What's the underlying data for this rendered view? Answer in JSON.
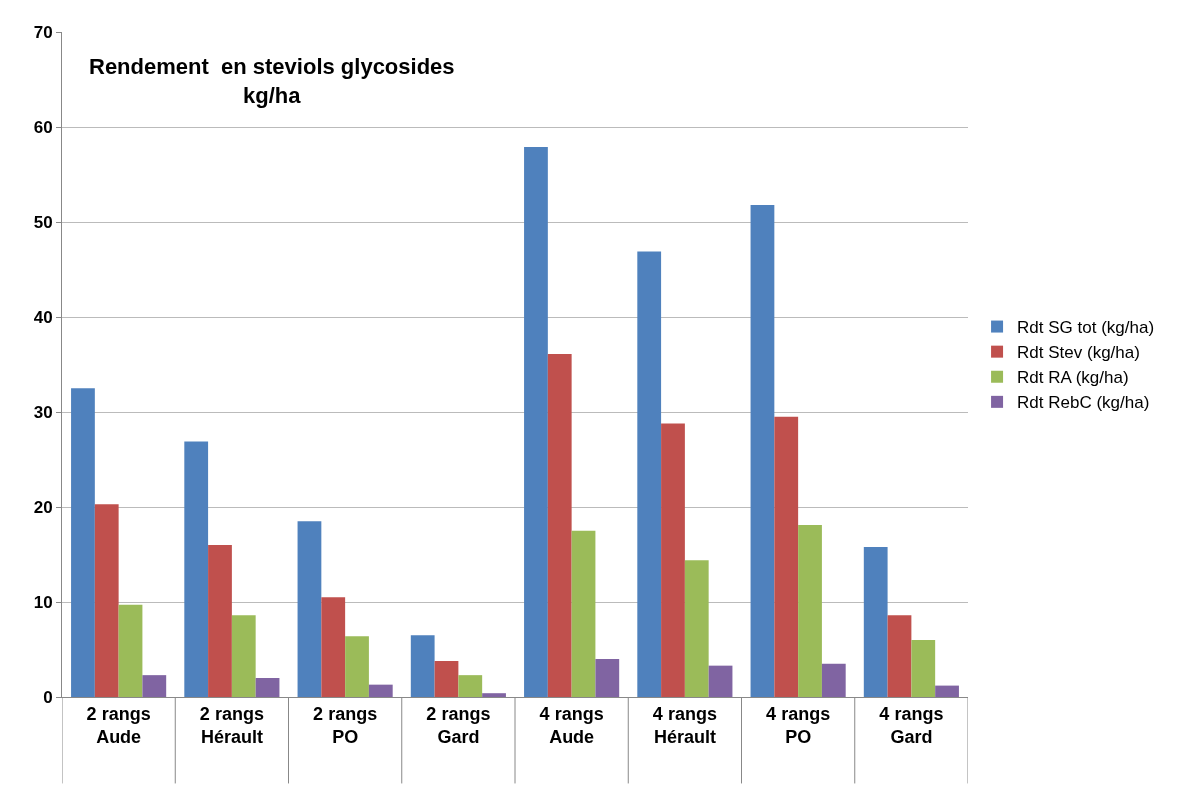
{
  "chart_data": {
    "type": "bar",
    "title": "Rendement  en steviols glycosides\nkg/ha",
    "categories": [
      "2 rangs\nAude",
      "2 rangs\nHérault",
      "2 rangs\nPO",
      "2 rangs\nGard",
      "4 rangs\nAude",
      "4 rangs\nHérault",
      "4 rangs\nPO",
      "4 rangs\nGard"
    ],
    "series": [
      {
        "name": "Rdt SG tot (kg/ha)",
        "color": "#4f81bd",
        "values": [
          32.5,
          26.9,
          18.5,
          6.5,
          57.9,
          46.9,
          51.8,
          15.8
        ]
      },
      {
        "name": "Rdt Stev (kg/ha)",
        "color": "#c0504d",
        "values": [
          20.3,
          16.0,
          10.5,
          3.8,
          36.1,
          28.8,
          29.5,
          8.6
        ]
      },
      {
        "name": "Rdt RA (kg/ha)",
        "color": "#9bbb59",
        "values": [
          9.7,
          8.6,
          6.4,
          2.3,
          17.5,
          14.4,
          18.1,
          6.0
        ]
      },
      {
        "name": "Rdt RebC (kg/ha)",
        "color": "#8064a2",
        "values": [
          2.3,
          2.0,
          1.3,
          0.4,
          4.0,
          3.3,
          3.5,
          1.2
        ]
      }
    ],
    "ylim": [
      0,
      70
    ],
    "yticks": [
      0,
      10,
      20,
      30,
      40,
      50,
      60,
      70
    ],
    "grid": "y",
    "legend": "right"
  }
}
